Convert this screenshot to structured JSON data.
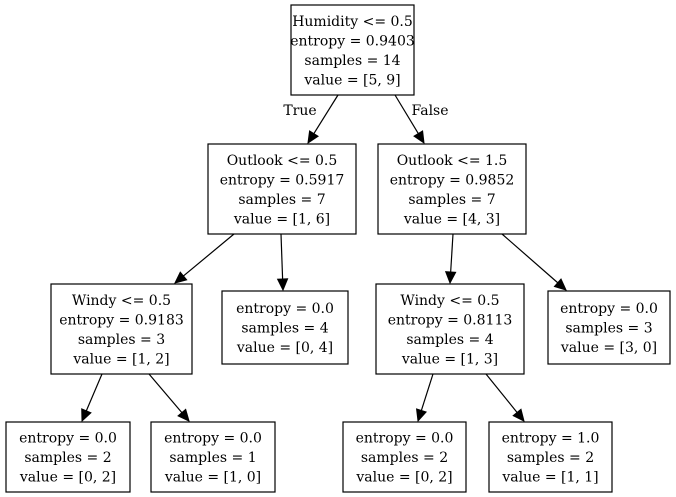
{
  "tree": {
    "nodes": [
      {
        "id": "n0",
        "lines": [
          "Humidity <= 0.5",
          "entropy = 0.9403",
          "samples = 14",
          "value = [5, 9]"
        ]
      },
      {
        "id": "n1",
        "lines": [
          "Outlook <= 0.5",
          "entropy = 0.5917",
          "samples = 7",
          "value = [1, 6]"
        ]
      },
      {
        "id": "n2",
        "lines": [
          "Outlook <= 1.5",
          "entropy = 0.9852",
          "samples = 7",
          "value = [4, 3]"
        ]
      },
      {
        "id": "n3",
        "lines": [
          "Windy <= 0.5",
          "entropy = 0.9183",
          "samples = 3",
          "value = [1, 2]"
        ]
      },
      {
        "id": "n4",
        "lines": [
          "entropy = 0.0",
          "samples = 4",
          "value = [0, 4]"
        ]
      },
      {
        "id": "n5",
        "lines": [
          "Windy <= 0.5",
          "entropy = 0.8113",
          "samples = 4",
          "value = [1, 3]"
        ]
      },
      {
        "id": "n6",
        "lines": [
          "entropy = 0.0",
          "samples = 3",
          "value = [3, 0]"
        ]
      },
      {
        "id": "n7",
        "lines": [
          "entropy = 0.0",
          "samples = 2",
          "value = [0, 2]"
        ]
      },
      {
        "id": "n8",
        "lines": [
          "entropy = 0.0",
          "samples = 1",
          "value = [1, 0]"
        ]
      },
      {
        "id": "n9",
        "lines": [
          "entropy = 0.0",
          "samples = 2",
          "value = [0, 2]"
        ]
      },
      {
        "id": "n10",
        "lines": [
          "entropy = 1.0",
          "samples = 2",
          "value = [1, 1]"
        ]
      }
    ],
    "edges": [
      {
        "from": "n0",
        "to": "n1",
        "label": "True"
      },
      {
        "from": "n0",
        "to": "n2",
        "label": "False"
      },
      {
        "from": "n1",
        "to": "n3",
        "label": ""
      },
      {
        "from": "n1",
        "to": "n4",
        "label": ""
      },
      {
        "from": "n2",
        "to": "n5",
        "label": ""
      },
      {
        "from": "n2",
        "to": "n6",
        "label": ""
      },
      {
        "from": "n3",
        "to": "n7",
        "label": ""
      },
      {
        "from": "n3",
        "to": "n8",
        "label": ""
      },
      {
        "from": "n5",
        "to": "n9",
        "label": ""
      },
      {
        "from": "n5",
        "to": "n10",
        "label": ""
      }
    ]
  }
}
